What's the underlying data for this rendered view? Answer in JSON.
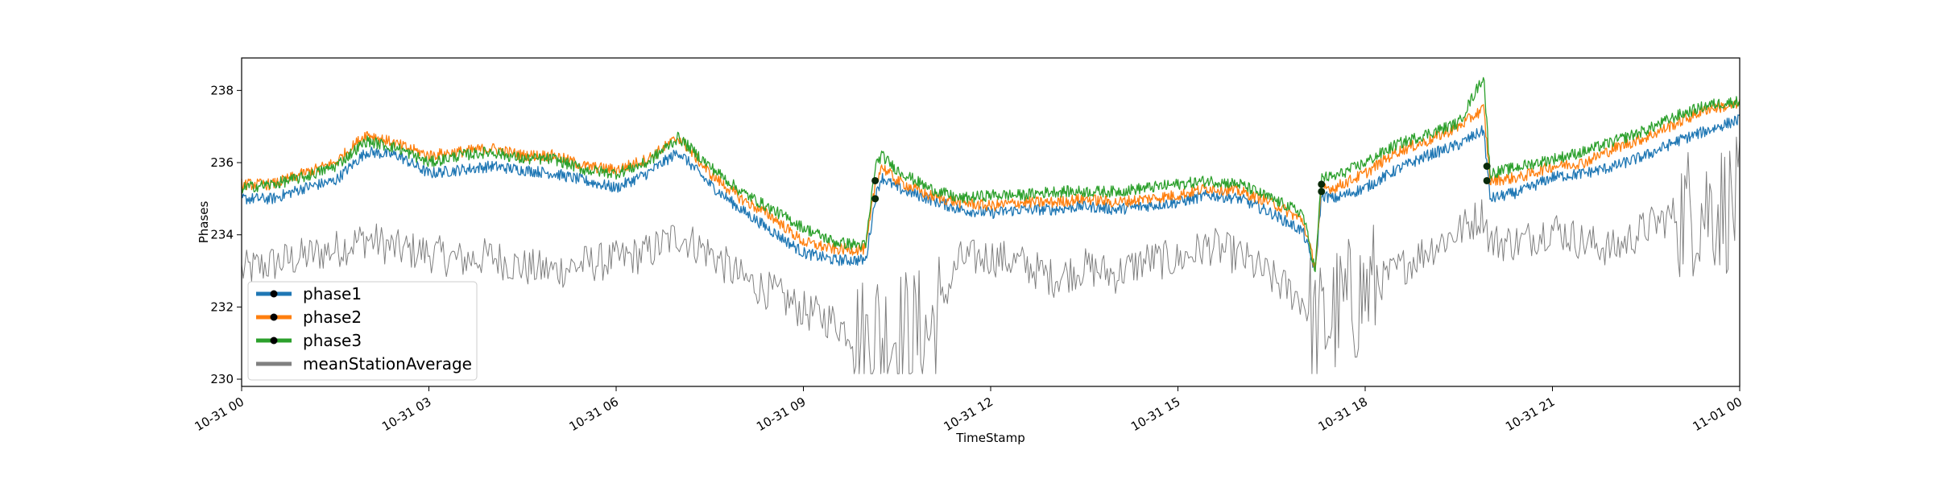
{
  "chart_data": {
    "type": "line",
    "title": "",
    "xlabel": "TimeStamp",
    "ylabel": "Phases",
    "x_ticks": [
      "10-31 00",
      "10-31 03",
      "10-31 06",
      "10-31 09",
      "10-31 12",
      "10-31 15",
      "10-31 18",
      "10-31 21",
      "11-01 00"
    ],
    "xlim": [
      "10-31 00:00",
      "11-01 00:00"
    ],
    "y_ticks": [
      "230",
      "232",
      "234",
      "236",
      "238"
    ],
    "ylim": [
      229.8,
      238.9
    ],
    "grid": false,
    "legend_placement": "lower-left",
    "x_hours": [
      0,
      0.5,
      1,
      1.5,
      2,
      2.5,
      3,
      3.5,
      4,
      4.5,
      5,
      5.5,
      6,
      6.5,
      7,
      7.5,
      8,
      8.5,
      9,
      9.5,
      10,
      10.15,
      10.25,
      10.5,
      11,
      11.5,
      12,
      12.5,
      13,
      13.5,
      14,
      14.5,
      15,
      15.5,
      16,
      16.5,
      17,
      17.2,
      17.3,
      17.5,
      18,
      18.5,
      19,
      19.5,
      19.9,
      20.0,
      20.5,
      21,
      21.5,
      22,
      22.5,
      23,
      23.5,
      24
    ],
    "series": [
      {
        "name": "phase1",
        "color": "#1f77b4",
        "values": [
          235.0,
          235.0,
          235.3,
          235.5,
          236.3,
          236.2,
          235.7,
          235.8,
          235.9,
          235.8,
          235.7,
          235.5,
          235.3,
          235.7,
          236.3,
          235.4,
          234.7,
          234.1,
          233.5,
          233.3,
          233.3,
          235.0,
          235.6,
          235.3,
          235.0,
          234.7,
          234.6,
          234.7,
          234.7,
          234.8,
          234.7,
          234.8,
          234.9,
          235.1,
          235.0,
          234.6,
          234.1,
          233.0,
          235.1,
          235.0,
          235.3,
          235.8,
          236.2,
          236.5,
          236.9,
          235.0,
          235.2,
          235.6,
          235.7,
          235.9,
          236.2,
          236.6,
          236.9,
          237.2
        ]
      },
      {
        "name": "phase2",
        "color": "#ff7f0e",
        "values": [
          235.4,
          235.4,
          235.7,
          236.0,
          236.8,
          236.5,
          236.2,
          236.3,
          236.4,
          236.2,
          236.2,
          235.9,
          235.8,
          236.1,
          236.7,
          235.7,
          235.0,
          234.5,
          233.8,
          233.6,
          233.6,
          235.4,
          235.9,
          235.5,
          235.1,
          234.9,
          234.8,
          234.9,
          234.9,
          235.0,
          234.9,
          235.0,
          235.1,
          235.3,
          235.2,
          234.9,
          234.4,
          233.1,
          235.3,
          235.3,
          235.7,
          236.3,
          236.6,
          237.0,
          237.5,
          235.5,
          235.6,
          235.9,
          236.0,
          236.4,
          236.7,
          237.1,
          237.5,
          237.6
        ]
      },
      {
        "name": "phase3",
        "color": "#2ca02c",
        "values": [
          235.3,
          235.4,
          235.6,
          235.9,
          236.6,
          236.4,
          236.0,
          236.2,
          236.3,
          236.1,
          236.1,
          235.8,
          235.7,
          236.0,
          236.7,
          235.9,
          235.2,
          234.7,
          234.2,
          233.8,
          233.7,
          235.9,
          236.2,
          235.8,
          235.3,
          235.0,
          235.1,
          235.1,
          235.2,
          235.2,
          235.2,
          235.3,
          235.4,
          235.5,
          235.4,
          235.0,
          234.6,
          233.0,
          235.6,
          235.6,
          236.0,
          236.5,
          236.8,
          237.1,
          238.4,
          235.7,
          235.9,
          236.1,
          236.3,
          236.6,
          236.9,
          237.3,
          237.6,
          237.7
        ]
      },
      {
        "name": "meanStationAverage",
        "color": "#808080",
        "values": [
          233.0,
          233.2,
          233.4,
          233.6,
          233.9,
          233.6,
          233.5,
          233.3,
          233.4,
          233.1,
          233.0,
          233.2,
          233.3,
          233.5,
          234.0,
          233.5,
          232.8,
          232.4,
          231.9,
          231.6,
          231.0,
          231.5,
          231.2,
          231.3,
          231.2,
          233.3,
          233.4,
          233.2,
          232.8,
          233.1,
          232.9,
          233.3,
          233.3,
          233.7,
          233.4,
          232.8,
          232.2,
          231.4,
          231.4,
          231.8,
          232.4,
          233.0,
          233.6,
          234.1,
          234.6,
          233.8,
          233.8,
          234.2,
          233.8,
          233.6,
          234.2,
          234.6,
          234.8,
          234.8
        ]
      }
    ],
    "markers": [
      {
        "series": "phase1",
        "x_hour": 10.15,
        "y": 235.0
      },
      {
        "series": "phase3",
        "x_hour": 10.15,
        "y": 235.5
      },
      {
        "series": "phase1",
        "x_hour": 17.3,
        "y": 235.2
      },
      {
        "series": "phase3",
        "x_hour": 17.3,
        "y": 235.4
      },
      {
        "series": "phase1",
        "x_hour": 19.95,
        "y": 235.5
      },
      {
        "series": "phase3",
        "x_hour": 19.95,
        "y": 235.9
      }
    ],
    "legend": [
      "phase1",
      "phase2",
      "phase3",
      "meanStationAverage"
    ]
  }
}
